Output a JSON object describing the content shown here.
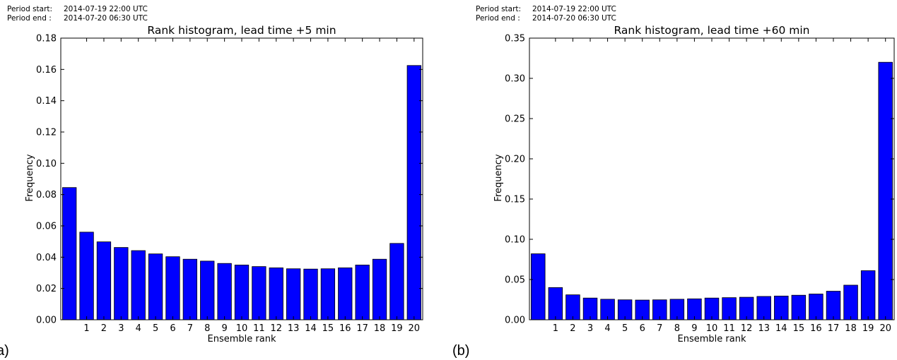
{
  "chart_data": [
    {
      "type": "bar",
      "panel_tag": "a)",
      "period_start_label": "Period start:",
      "period_start_value": "2014-07-19 22:00 UTC",
      "period_end_label": "Period end :",
      "period_end_value": "2014-07-20 06:30 UTC",
      "title": "Rank histogram, lead time +5 min",
      "xlabel": "Ensemble rank",
      "ylabel": "Frequency",
      "ylim": [
        0,
        0.18
      ],
      "yticks": [
        "0.00",
        "0.02",
        "0.04",
        "0.06",
        "0.08",
        "0.10",
        "0.12",
        "0.14",
        "0.16",
        "0.18"
      ],
      "categories": [
        "",
        "1",
        "2",
        "3",
        "4",
        "5",
        "6",
        "7",
        "8",
        "9",
        "10",
        "11",
        "12",
        "13",
        "14",
        "15",
        "16",
        "17",
        "18",
        "19",
        "20"
      ],
      "values": [
        0.0845,
        0.056,
        0.0498,
        0.0462,
        0.0442,
        0.0421,
        0.0403,
        0.0387,
        0.0375,
        0.036,
        0.035,
        0.034,
        0.0332,
        0.0326,
        0.0324,
        0.0326,
        0.0332,
        0.035,
        0.0387,
        0.0488,
        0.1625
      ],
      "bar_color": "#0000ff",
      "grid": false
    },
    {
      "type": "bar",
      "panel_tag": "(b)",
      "period_start_label": "Period start:",
      "period_start_value": "2014-07-19 22:00 UTC",
      "period_end_label": "Period end :",
      "period_end_value": "2014-07-20 06:30 UTC",
      "title": "Rank histogram, lead time +60 min",
      "xlabel": "Ensemble rank",
      "ylabel": "Frequency",
      "ylim": [
        0,
        0.35
      ],
      "yticks": [
        "0.00",
        "0.05",
        "0.10",
        "0.15",
        "0.20",
        "0.25",
        "0.30",
        "0.35"
      ],
      "categories": [
        "",
        "1",
        "2",
        "3",
        "4",
        "5",
        "6",
        "7",
        "8",
        "9",
        "10",
        "11",
        "12",
        "13",
        "14",
        "15",
        "16",
        "17",
        "18",
        "19",
        "20"
      ],
      "values": [
        0.082,
        0.04,
        0.031,
        0.027,
        0.0255,
        0.0248,
        0.0245,
        0.0248,
        0.0255,
        0.026,
        0.027,
        0.0275,
        0.028,
        0.029,
        0.0295,
        0.0305,
        0.032,
        0.0355,
        0.043,
        0.061,
        0.32
      ],
      "bar_color": "#0000ff",
      "grid": false
    }
  ]
}
